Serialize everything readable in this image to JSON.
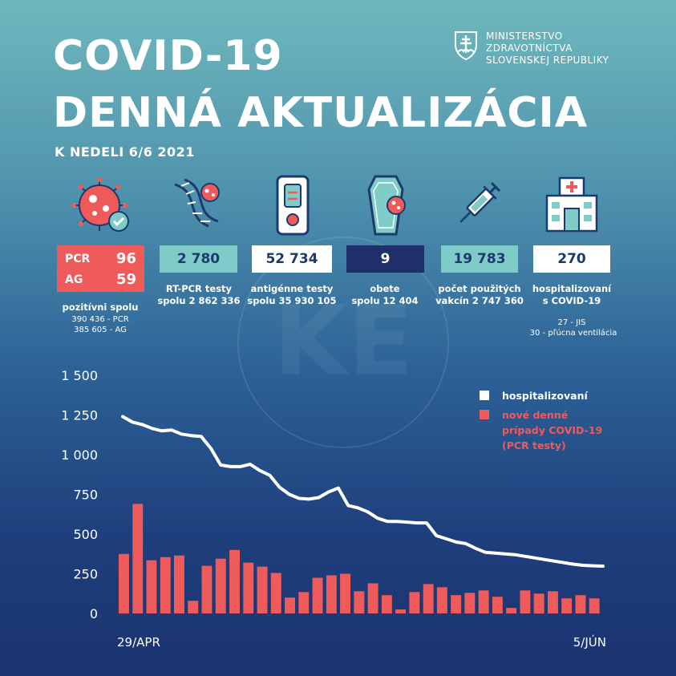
{
  "header": {
    "title_line1": "COVID-19",
    "title_line2": "DENNÁ AKTUALIZÁCIA",
    "date": "K NEDELI 6/6 2021",
    "ministry": [
      "MINISTERSTVO",
      "ZDRAVOTNÍCTVA",
      "SLOVENSKEJ REPUBLIKY"
    ]
  },
  "stats": {
    "positive": {
      "pcr_label": "PCR",
      "pcr_value": "96",
      "ag_label": "AG",
      "ag_value": "59",
      "caption": "pozitívni spolu",
      "sub1": "390 436 - PCR",
      "sub2": "385 605 - AG"
    },
    "rtpcr": {
      "value": "2 780",
      "caption1": "RT-PCR testy",
      "caption2": "spolu 2 862 336"
    },
    "antigen": {
      "value": "52 734",
      "caption1": "antigénne testy",
      "caption2": "spolu 35 930 105"
    },
    "deaths": {
      "value": "9",
      "caption1": "obete",
      "caption2": "spolu 12 404"
    },
    "vaccines": {
      "value": "19 783",
      "caption1": "počet použitých",
      "caption2": "vakcín 2 747 360"
    },
    "hospitalized": {
      "value": "270",
      "caption1": "hospitalizovaní",
      "caption2": "s COVID-19",
      "sub1": "27 - JIS",
      "sub2": "30 - pľúcna ventilácia"
    }
  },
  "watermark": "KE",
  "colors": {
    "accent_red": "#ef5b5b",
    "teal": "#7ecbc8",
    "navy": "#1f2f6a",
    "white": "#ffffff"
  },
  "chart_data": {
    "type": "bar",
    "title": "",
    "xlabel": "",
    "ylabel": "",
    "ylim": [
      0,
      1500
    ],
    "yticks": [
      0,
      250,
      500,
      750,
      1000,
      1250,
      1500
    ],
    "ytick_labels": [
      "0",
      "250",
      "500",
      "750",
      "1 000",
      "1 250",
      "1 500"
    ],
    "x_start_label": "29/APR",
    "x_end_label": "5/JÚN",
    "legend_position": "top-right",
    "series": [
      {
        "name": "hospitalizovaní",
        "type": "line",
        "color": "#ffffff",
        "values": [
          1240,
          1205,
          1190,
          1165,
          1150,
          1155,
          1130,
          1120,
          1115,
          1040,
          935,
          925,
          925,
          940,
          900,
          870,
          795,
          750,
          725,
          720,
          730,
          765,
          790,
          680,
          665,
          640,
          600,
          580,
          580,
          575,
          570,
          570,
          490,
          470,
          450,
          440,
          410,
          385,
          380,
          375,
          370,
          360,
          350,
          340,
          330,
          320,
          310,
          303,
          300,
          298
        ]
      },
      {
        "name": "nové denné prípady COVID-19 (PCR testy)",
        "type": "bar",
        "color": "#ef5b5b",
        "values": [
          375,
          690,
          335,
          355,
          365,
          80,
          300,
          345,
          400,
          320,
          295,
          255,
          100,
          135,
          225,
          240,
          250,
          140,
          190,
          115,
          25,
          135,
          185,
          165,
          115,
          130,
          145,
          105,
          35,
          145,
          125,
          140,
          95,
          115,
          95
        ]
      }
    ]
  }
}
